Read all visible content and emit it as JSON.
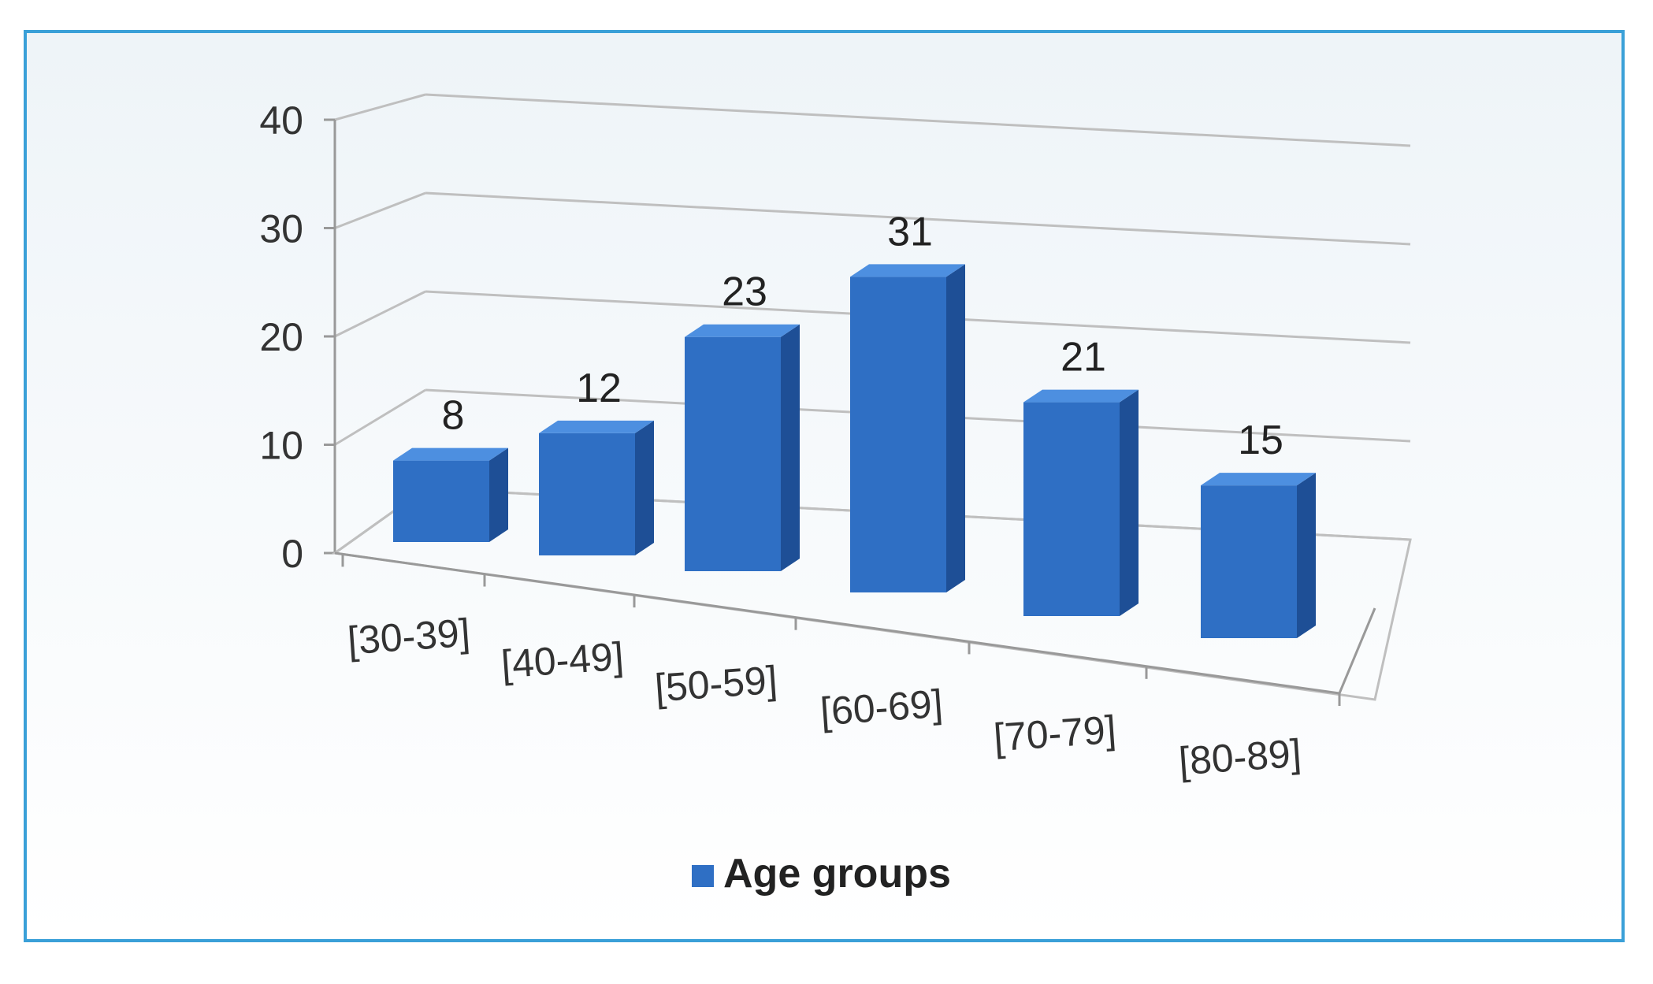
{
  "chart_data": {
    "type": "bar",
    "style": "3d-column",
    "categories": [
      "[30-39]",
      "[40-49]",
      "[50-59]",
      "[60-69]",
      "[70-79]",
      "[80-89]"
    ],
    "series": [
      {
        "name": "Age groups",
        "values": [
          8,
          12,
          23,
          31,
          21,
          15
        ]
      }
    ],
    "yticks": [
      0,
      10,
      20,
      30,
      40
    ],
    "ylim": [
      0,
      40
    ],
    "grid": true,
    "legend": "bottom-center",
    "colors": {
      "bar": "#2f6fc4",
      "bar_top": "#4d8fe0",
      "bar_side": "#1e4f96",
      "frame": "#3aa0d8",
      "grid": "#bfbfbf"
    }
  }
}
